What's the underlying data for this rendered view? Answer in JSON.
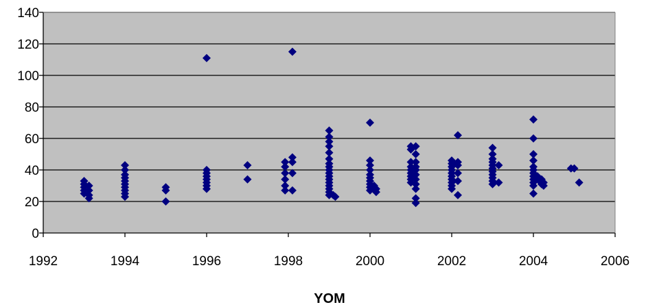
{
  "chart_data": {
    "type": "scatter",
    "title": "",
    "xlabel": "YOM",
    "ylabel": "",
    "xlim": [
      1992,
      2006
    ],
    "ylim": [
      0,
      140
    ],
    "x_ticks": [
      1992,
      1994,
      1996,
      1998,
      2000,
      2002,
      2004,
      2006
    ],
    "y_ticks": [
      0,
      20,
      40,
      60,
      80,
      100,
      120,
      140
    ],
    "grid": true,
    "legend": "none",
    "colors": {
      "plot_bg": "#c0c0c0",
      "marker": "#000080",
      "grid": "#000000"
    },
    "series": [
      {
        "marker": "diamond",
        "points": [
          [
            1993,
            33
          ],
          [
            1993,
            31
          ],
          [
            1993,
            29
          ],
          [
            1993,
            27
          ],
          [
            1993,
            25
          ],
          [
            1993.12,
            30
          ],
          [
            1993.12,
            27
          ],
          [
            1993.12,
            24
          ],
          [
            1993.12,
            22
          ],
          [
            1994,
            43
          ],
          [
            1994,
            40
          ],
          [
            1994,
            37
          ],
          [
            1994,
            35
          ],
          [
            1994,
            33
          ],
          [
            1994,
            31
          ],
          [
            1994,
            29
          ],
          [
            1994,
            27
          ],
          [
            1994,
            25
          ],
          [
            1994,
            23
          ],
          [
            1995,
            29
          ],
          [
            1995,
            27
          ],
          [
            1995,
            20
          ],
          [
            1996,
            111
          ],
          [
            1996,
            40
          ],
          [
            1996,
            38
          ],
          [
            1996,
            36
          ],
          [
            1996,
            34
          ],
          [
            1996,
            32
          ],
          [
            1996,
            30
          ],
          [
            1996,
            28
          ],
          [
            1997,
            43
          ],
          [
            1997,
            34
          ],
          [
            1997.92,
            45
          ],
          [
            1997.92,
            42
          ],
          [
            1997.92,
            38
          ],
          [
            1997.92,
            34
          ],
          [
            1997.92,
            30
          ],
          [
            1997.92,
            27
          ],
          [
            1998.1,
            115
          ],
          [
            1998.1,
            48
          ],
          [
            1998.1,
            45
          ],
          [
            1998.1,
            38
          ],
          [
            1998.1,
            27
          ],
          [
            1999,
            65
          ],
          [
            1999,
            61
          ],
          [
            1999,
            58
          ],
          [
            1999,
            55
          ],
          [
            1999,
            51
          ],
          [
            1999,
            47
          ],
          [
            1999,
            44
          ],
          [
            1999,
            42
          ],
          [
            1999,
            40
          ],
          [
            1999,
            38
          ],
          [
            1999,
            36
          ],
          [
            1999,
            34
          ],
          [
            1999,
            32
          ],
          [
            1999,
            30
          ],
          [
            1999,
            28
          ],
          [
            1999,
            26
          ],
          [
            1999,
            24
          ],
          [
            1999.1,
            24
          ],
          [
            1999.15,
            23
          ],
          [
            2000,
            70
          ],
          [
            2000,
            46
          ],
          [
            2000,
            43
          ],
          [
            2000,
            40
          ],
          [
            2000,
            37
          ],
          [
            2000,
            35
          ],
          [
            2000,
            33
          ],
          [
            2000,
            31
          ],
          [
            2000,
            29
          ],
          [
            2000,
            27
          ],
          [
            2000.1,
            30
          ],
          [
            2000.15,
            28
          ],
          [
            2000.15,
            26
          ],
          [
            2001,
            55
          ],
          [
            2001,
            53
          ],
          [
            2001,
            45
          ],
          [
            2001,
            42
          ],
          [
            2001,
            40
          ],
          [
            2001,
            38
          ],
          [
            2001,
            36
          ],
          [
            2001,
            34
          ],
          [
            2001,
            32
          ],
          [
            2001.12,
            55
          ],
          [
            2001.12,
            50
          ],
          [
            2001.12,
            45
          ],
          [
            2001.12,
            42
          ],
          [
            2001.12,
            40
          ],
          [
            2001.12,
            37
          ],
          [
            2001.12,
            34
          ],
          [
            2001.12,
            31
          ],
          [
            2001.12,
            28
          ],
          [
            2001.12,
            22
          ],
          [
            2001.12,
            19
          ],
          [
            2002,
            46
          ],
          [
            2002,
            44
          ],
          [
            2002,
            42
          ],
          [
            2002,
            40
          ],
          [
            2002,
            38
          ],
          [
            2002,
            36
          ],
          [
            2002,
            34
          ],
          [
            2002,
            32
          ],
          [
            2002,
            30
          ],
          [
            2002,
            28
          ],
          [
            2002.15,
            62
          ],
          [
            2002.15,
            45
          ],
          [
            2002.15,
            43
          ],
          [
            2002.15,
            38
          ],
          [
            2002.15,
            33
          ],
          [
            2002.15,
            24
          ],
          [
            2003,
            54
          ],
          [
            2003,
            50
          ],
          [
            2003,
            47
          ],
          [
            2003,
            45
          ],
          [
            2003,
            43
          ],
          [
            2003,
            41
          ],
          [
            2003,
            39
          ],
          [
            2003,
            37
          ],
          [
            2003,
            35
          ],
          [
            2003,
            33
          ],
          [
            2003,
            31
          ],
          [
            2003.15,
            43
          ],
          [
            2003.15,
            32
          ],
          [
            2004,
            72
          ],
          [
            2004,
            60
          ],
          [
            2004,
            50
          ],
          [
            2004,
            46
          ],
          [
            2004,
            42
          ],
          [
            2004,
            40
          ],
          [
            2004,
            38
          ],
          [
            2004,
            36
          ],
          [
            2004,
            34
          ],
          [
            2004,
            32
          ],
          [
            2004,
            30
          ],
          [
            2004,
            25
          ],
          [
            2004.1,
            36
          ],
          [
            2004.15,
            33
          ],
          [
            2004.2,
            34
          ],
          [
            2004.2,
            31
          ],
          [
            2004.25,
            32
          ],
          [
            2004.25,
            30
          ],
          [
            2004.92,
            41
          ],
          [
            2005,
            41
          ],
          [
            2005.12,
            32
          ]
        ]
      }
    ]
  }
}
